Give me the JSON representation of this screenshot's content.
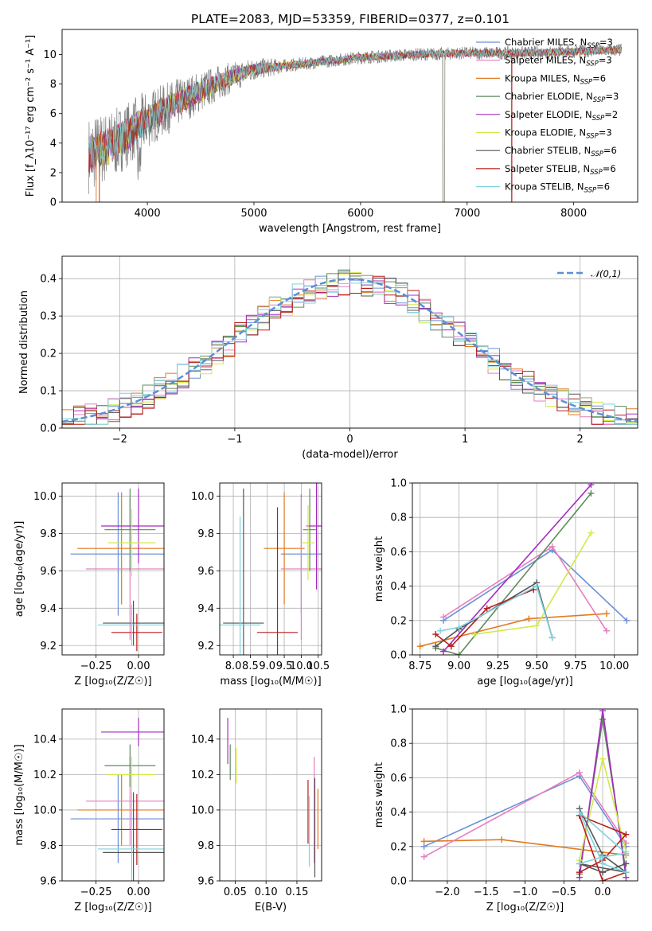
{
  "figure_title": "PLATE=2083, MJD=53359, FIBERID=0377, z=0.101",
  "colors": [
    "#6a8fd8",
    "#e07b20",
    "#e67fbf",
    "#5f8a5f",
    "#a52bc0",
    "#d4e84a",
    "#555555",
    "#b81c1c",
    "#7fd2dd"
  ],
  "chart_data": [
    {
      "id": "spectrum",
      "type": "line",
      "xlabel": "wavelength [Angstrom, rest frame]",
      "ylabel": "Flux [f_λ10⁻¹⁷ erg cm⁻² s⁻¹ A⁻¹]",
      "xlim": [
        3200,
        8600
      ],
      "ylim": [
        0,
        11.7
      ],
      "xticks": [
        4000,
        5000,
        6000,
        7000,
        8000
      ],
      "yticks": [
        0,
        2,
        4,
        6,
        8,
        10
      ],
      "grid": false,
      "legend_position": "top-right",
      "continuum_anchors_x": [
        3450,
        3700,
        4000,
        4300,
        4700,
        5000,
        5500,
        6000,
        6500,
        7000,
        7500,
        8000,
        8400
      ],
      "continuum_anchors_y": [
        3.2,
        4.0,
        5.6,
        6.8,
        8.2,
        9.0,
        9.4,
        9.8,
        10.0,
        10.1,
        10.1,
        10.2,
        10.3
      ],
      "series": [
        {
          "name": "Chabrier MILES, N_SSP=3",
          "color": "#6a8fd8"
        },
        {
          "name": "Salpeter MILES, N_SSP=3",
          "color": "#e67fbf"
        },
        {
          "name": "Kroupa MILES, N_SSP=6",
          "color": "#e07b20"
        },
        {
          "name": "Chabrier ELODIE, N_SSP=3",
          "color": "#5f8a5f"
        },
        {
          "name": "Salpeter ELODIE, N_SSP=2",
          "color": "#a52bc0"
        },
        {
          "name": "Kroupa ELODIE, N_SSP=3",
          "color": "#d4e84a"
        },
        {
          "name": "Chabrier STELIB, N_SSP=6",
          "color": "#555555"
        },
        {
          "name": "Salpeter STELIB, N_SSP=6",
          "color": "#b81c1c"
        },
        {
          "name": "Kroupa STELIB, N_SSP=6",
          "color": "#7fd2dd"
        }
      ]
    },
    {
      "id": "residuals",
      "type": "line",
      "xlabel": "(data-model)/error",
      "ylabel": "Normed distribution",
      "xlim": [
        -2.5,
        2.5
      ],
      "ylim": [
        0,
        0.46
      ],
      "xticks": [
        -2,
        -1,
        0,
        1,
        2
      ],
      "yticks": [
        0.0,
        0.1,
        0.2,
        0.3,
        0.4
      ],
      "grid": true,
      "legend_position": "top-right",
      "reference": {
        "name": "𝒩(0,1)",
        "color": "#5b8fd6"
      },
      "bin_width": 0.1,
      "histogram_colors": [
        "#6a8fd8",
        "#e07b20",
        "#e67fbf",
        "#5f8a5f",
        "#a52bc0",
        "#d4e84a",
        "#555555",
        "#b81c1c",
        "#7fd2dd"
      ]
    },
    {
      "id": "age_vs_Z",
      "type": "scatter",
      "xlabel": "Z [log₁₀(Z/Z☉)]",
      "ylabel": "age  [log₁₀(age/yr)]",
      "xlim": [
        -0.45,
        0.15
      ],
      "ylim": [
        9.15,
        10.07
      ],
      "xticks": [
        -0.25,
        0.0
      ],
      "yticks": [
        9.2,
        9.4,
        9.6,
        9.8,
        10.0
      ],
      "grid": true,
      "crosses": [
        {
          "color": "#6a8fd8",
          "x": -0.12,
          "xerr": 0.28,
          "y": 9.69,
          "yerr": 0.33
        },
        {
          "color": "#e07b20",
          "x": -0.1,
          "xerr": 0.26,
          "y": 9.72,
          "yerr": 0.3
        },
        {
          "color": "#e67fbf",
          "x": -0.05,
          "xerr": 0.26,
          "y": 9.61,
          "yerr": 0.38
        },
        {
          "color": "#5f8a5f",
          "x": -0.05,
          "xerr": 0.15,
          "y": 9.82,
          "yerr": 0.22
        },
        {
          "color": "#a52bc0",
          "x": 0.0,
          "xerr": 0.22,
          "y": 9.84,
          "yerr": 0.2
        },
        {
          "color": "#d4e84a",
          "x": -0.04,
          "xerr": 0.14,
          "y": 9.75,
          "yerr": 0.18
        },
        {
          "color": "#555555",
          "x": -0.03,
          "xerr": 0.18,
          "y": 9.32,
          "yerr": 0.12
        },
        {
          "color": "#b81c1c",
          "x": -0.01,
          "xerr": 0.15,
          "y": 9.27,
          "yerr": 0.1
        },
        {
          "color": "#7fd2dd",
          "x": -0.04,
          "xerr": 0.2,
          "y": 9.31,
          "yerr": 0.11
        }
      ]
    },
    {
      "id": "age_vs_mass",
      "type": "scatter",
      "xlabel": "mass [log₁₀(M/M☉)]",
      "ylabel": "",
      "xlim": [
        7.6,
        10.6
      ],
      "ylim": [
        9.15,
        10.07
      ],
      "xticks": [
        7.5,
        8.0,
        8.5,
        9.0,
        9.5,
        10.0,
        10.5
      ],
      "yticks": [
        9.2,
        9.4,
        9.6,
        9.8,
        10.0
      ],
      "grid": true,
      "crosses": [
        {
          "color": "#6a8fd8",
          "x": 10.0,
          "xerr": 0.6,
          "y": 9.69,
          "yerr": 0.32
        },
        {
          "color": "#e07b20",
          "x": 9.5,
          "xerr": 0.6,
          "y": 9.72,
          "yerr": 0.3
        },
        {
          "color": "#e67fbf",
          "x": 10.0,
          "xerr": 0.6,
          "y": 9.61,
          "yerr": 0.38
        },
        {
          "color": "#5f8a5f",
          "x": 10.25,
          "xerr": 0.2,
          "y": 9.82,
          "yerr": 0.22
        },
        {
          "color": "#a52bc0",
          "x": 10.45,
          "xerr": 0.3,
          "y": 9.84,
          "yerr": 0.34
        },
        {
          "color": "#d4e84a",
          "x": 10.2,
          "xerr": 0.2,
          "y": 9.75,
          "yerr": 0.2
        },
        {
          "color": "#555555",
          "x": 8.3,
          "xerr": 0.6,
          "y": 9.32,
          "yerr": 0.72
        },
        {
          "color": "#b81c1c",
          "x": 9.3,
          "xerr": 0.6,
          "y": 9.27,
          "yerr": 0.67
        },
        {
          "color": "#7fd2dd",
          "x": 8.2,
          "xerr": 0.6,
          "y": 9.31,
          "yerr": 0.58
        }
      ]
    },
    {
      "id": "weight_vs_age",
      "type": "line",
      "xlabel": "age  [log₁₀(age/yr)]",
      "ylabel": "mass weight",
      "xlim": [
        8.7,
        10.15
      ],
      "ylim": [
        0,
        1.0
      ],
      "xticks": [
        8.75,
        9.0,
        9.25,
        9.5,
        9.75,
        10.0
      ],
      "yticks": [
        0.0,
        0.2,
        0.4,
        0.6,
        0.8,
        1.0
      ],
      "grid": true,
      "series": [
        {
          "color": "#6a8fd8",
          "x": [
            8.9,
            9.6,
            10.08
          ],
          "y": [
            0.2,
            0.61,
            0.2
          ]
        },
        {
          "color": "#e07b20",
          "x": [
            8.75,
            9.45,
            9.95
          ],
          "y": [
            0.05,
            0.21,
            0.24
          ]
        },
        {
          "color": "#e67fbf",
          "x": [
            8.9,
            9.6,
            9.95
          ],
          "y": [
            0.22,
            0.63,
            0.14
          ]
        },
        {
          "color": "#5f8a5f",
          "x": [
            8.85,
            9.0,
            9.85
          ],
          "y": [
            0.04,
            0.0,
            0.94
          ]
        },
        {
          "color": "#a52bc0",
          "x": [
            8.9,
            9.85
          ],
          "y": [
            0.02,
            0.99
          ]
        },
        {
          "color": "#d4e84a",
          "x": [
            9.1,
            9.5,
            9.85
          ],
          "y": [
            0.12,
            0.17,
            0.71
          ]
        },
        {
          "color": "#555555",
          "x": [
            8.85,
            9.0,
            9.5,
            9.6
          ],
          "y": [
            0.05,
            0.15,
            0.42,
            0.1
          ]
        },
        {
          "color": "#b81c1c",
          "x": [
            8.85,
            8.95,
            9.18,
            9.48
          ],
          "y": [
            0.12,
            0.05,
            0.27,
            0.38
          ]
        },
        {
          "color": "#7fd2dd",
          "x": [
            8.88,
            9.0,
            9.5,
            9.6
          ],
          "y": [
            0.14,
            0.16,
            0.4,
            0.1
          ]
        }
      ]
    },
    {
      "id": "mass_vs_Z",
      "type": "scatter",
      "xlabel": "Z [log₁₀(Z/Z☉)]",
      "ylabel": "mass [log₁₀(M/M☉)]",
      "xlim": [
        -0.45,
        0.15
      ],
      "ylim": [
        9.6,
        10.57
      ],
      "xticks": [
        -0.25,
        0.0
      ],
      "yticks": [
        9.6,
        9.8,
        10.0,
        10.2,
        10.4
      ],
      "grid": true,
      "crosses": [
        {
          "color": "#6a8fd8",
          "x": -0.12,
          "xerr": 0.28,
          "y": 9.95,
          "yerr": 0.25
        },
        {
          "color": "#e07b20",
          "x": -0.1,
          "xerr": 0.26,
          "y": 10.0,
          "yerr": 0.2
        },
        {
          "color": "#e67fbf",
          "x": -0.05,
          "xerr": 0.26,
          "y": 10.05,
          "yerr": 0.25
        },
        {
          "color": "#5f8a5f",
          "x": -0.05,
          "xerr": 0.15,
          "y": 10.25,
          "yerr": 0.12
        },
        {
          "color": "#a52bc0",
          "x": 0.0,
          "xerr": 0.22,
          "y": 10.44,
          "yerr": 0.08
        },
        {
          "color": "#d4e84a",
          "x": -0.04,
          "xerr": 0.14,
          "y": 10.2,
          "yerr": 0.1
        },
        {
          "color": "#555555",
          "x": -0.03,
          "xerr": 0.18,
          "y": 9.76,
          "yerr": 0.34
        },
        {
          "color": "#b81c1c",
          "x": -0.01,
          "xerr": 0.15,
          "y": 9.89,
          "yerr": 0.2
        },
        {
          "color": "#7fd2dd",
          "x": -0.04,
          "xerr": 0.2,
          "y": 9.78,
          "yerr": 0.32
        }
      ]
    },
    {
      "id": "mass_vs_ebv",
      "type": "scatter",
      "xlabel": "E(B-V)",
      "ylabel": "",
      "xlim": [
        0.025,
        0.19
      ],
      "ylim": [
        9.6,
        10.57
      ],
      "xticks": [
        0.05,
        0.1,
        0.15
      ],
      "yticks": [
        9.6,
        9.8,
        10.0,
        10.2,
        10.4
      ],
      "grid": true,
      "crosses": [
        {
          "color": "#a52bc0",
          "x": 0.038,
          "xerr": 0.0,
          "y": 10.39,
          "yerr": 0.13
        },
        {
          "color": "#5f8a5f",
          "x": 0.042,
          "xerr": 0.0,
          "y": 10.27,
          "yerr": 0.1
        },
        {
          "color": "#d4e84a",
          "x": 0.052,
          "xerr": 0.0,
          "y": 10.25,
          "yerr": 0.1
        },
        {
          "color": "#b81c1c",
          "x": 0.168,
          "xerr": 0.0,
          "y": 9.99,
          "yerr": 0.18
        },
        {
          "color": "#7fd2dd",
          "x": 0.17,
          "xerr": 0.0,
          "y": 9.88,
          "yerr": 0.2
        },
        {
          "color": "#e67fbf",
          "x": 0.178,
          "xerr": 0.0,
          "y": 10.0,
          "yerr": 0.3
        },
        {
          "color": "#555555",
          "x": 0.179,
          "xerr": 0.0,
          "y": 9.9,
          "yerr": 0.28
        },
        {
          "color": "#e07b20",
          "x": 0.184,
          "xerr": 0.0,
          "y": 9.95,
          "yerr": 0.17
        }
      ]
    },
    {
      "id": "weight_vs_Z",
      "type": "line",
      "xlabel": "Z [log₁₀(Z/Z☉)]",
      "ylabel": "mass weight",
      "xlim": [
        -2.45,
        0.45
      ],
      "ylim": [
        0,
        1.0
      ],
      "xticks": [
        -2.0,
        -1.5,
        -1.0,
        -0.5,
        0.0
      ],
      "yticks": [
        0.0,
        0.2,
        0.4,
        0.6,
        0.8,
        1.0
      ],
      "grid": true,
      "series": [
        {
          "color": "#6a8fd8",
          "x": [
            -2.3,
            -0.3,
            0.3
          ],
          "y": [
            0.2,
            0.61,
            0.2
          ]
        },
        {
          "color": "#e07b20",
          "x": [
            -2.3,
            -1.3,
            0.3
          ],
          "y": [
            0.23,
            0.24,
            0.15
          ]
        },
        {
          "color": "#e67fbf",
          "x": [
            -2.3,
            -0.3,
            0.3
          ],
          "y": [
            0.14,
            0.63,
            0.22
          ]
        },
        {
          "color": "#5f8a5f",
          "x": [
            -0.3,
            0.0,
            0.3
          ],
          "y": [
            0.04,
            0.94,
            0.05
          ]
        },
        {
          "color": "#a52bc0",
          "x": [
            -0.3,
            0.0,
            0.3
          ],
          "y": [
            0.02,
            0.99,
            0.02
          ]
        },
        {
          "color": "#d4e84a",
          "x": [
            -0.3,
            0.0,
            0.3
          ],
          "y": [
            0.12,
            0.71,
            0.17
          ]
        },
        {
          "color": "#555555",
          "x": [
            -0.3,
            0.0,
            0.3,
            -0.3,
            0.0,
            0.3
          ],
          "y": [
            0.42,
            0.15,
            0.05,
            0.1,
            0.05,
            0.1
          ]
        },
        {
          "color": "#b81c1c",
          "x": [
            -0.3,
            0.0,
            0.3,
            -0.3,
            0.0,
            0.3
          ],
          "y": [
            0.05,
            0.12,
            0.27,
            0.38,
            0.0,
            0.05
          ]
        },
        {
          "color": "#7fd2dd",
          "x": [
            -0.3,
            0.0,
            0.3,
            -0.3,
            0.0,
            0.3
          ],
          "y": [
            0.1,
            0.14,
            0.16,
            0.4,
            0.1,
            0.05
          ]
        }
      ]
    }
  ]
}
